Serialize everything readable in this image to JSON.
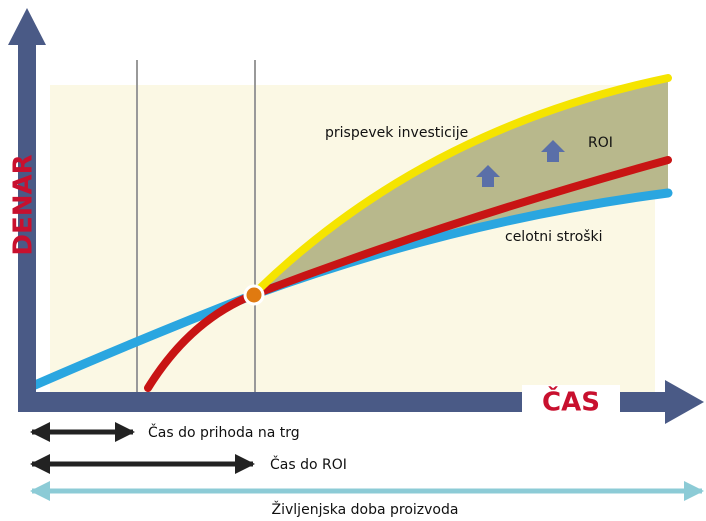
{
  "axes": {
    "y_label": "DENAR",
    "x_label": "ČAS"
  },
  "curves": {
    "investment": "prispevek investicije",
    "roi": "ROI",
    "total_costs": "celotni stroški"
  },
  "timelines": {
    "time_to_market": "Čas do prihoda na trg",
    "time_to_roi": "Čas do ROI",
    "product_life": "Življenjska doba proizvoda"
  }
}
